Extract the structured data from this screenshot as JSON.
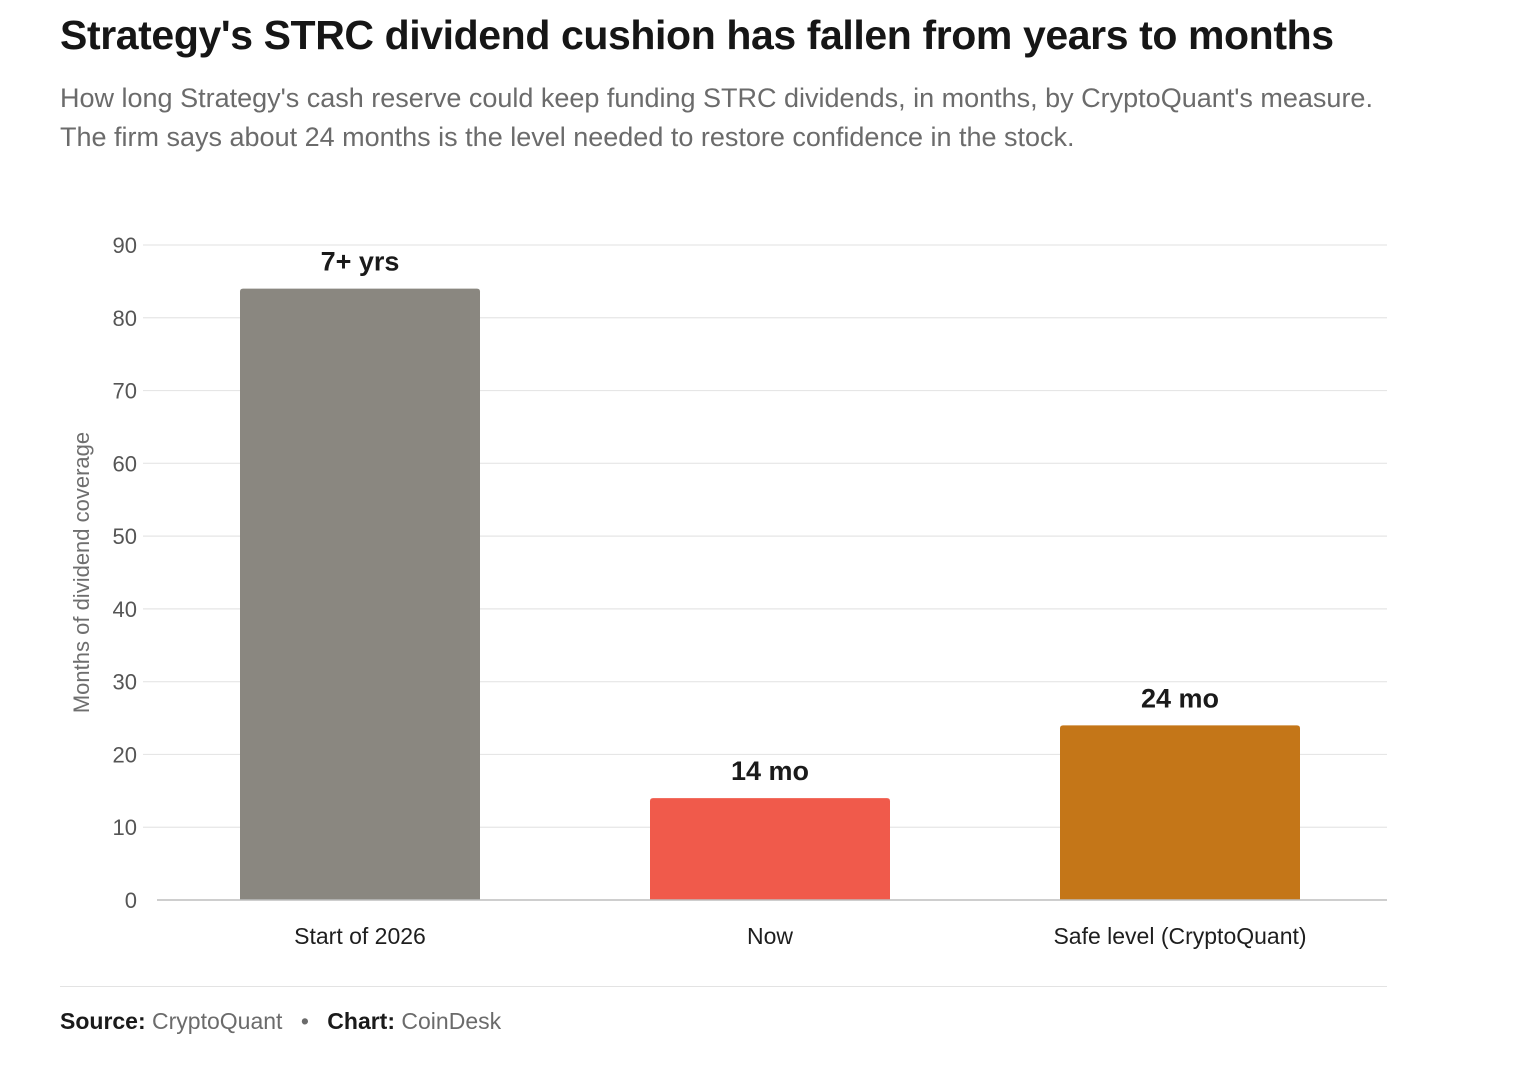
{
  "title": "Strategy's STRC dividend cushion has fallen from years to months",
  "subtitle": "How long Strategy's cash reserve could keep funding STRC dividends, in months, by CryptoQuant's measure. The firm says about 24 months is the level needed to restore confidence in the stock.",
  "chart_data": {
    "type": "bar",
    "categories": [
      "Start of 2026",
      "Now",
      "Safe level (CryptoQuant)"
    ],
    "values": [
      84,
      14,
      24
    ],
    "data_labels": [
      "7+ yrs",
      "14 mo",
      "24 mo"
    ],
    "colors": [
      "#8a8780",
      "#f05a4b",
      "#c47618"
    ],
    "xlabel": "",
    "ylabel": "Months of dividend coverage",
    "ylim": [
      0,
      90
    ],
    "yticks": [
      0,
      10,
      20,
      30,
      40,
      50,
      60,
      70,
      80,
      90
    ],
    "grid": true,
    "legend": "none"
  },
  "footer": {
    "source_label": "Source:",
    "source_value": "CryptoQuant",
    "separator": "•",
    "chart_label": "Chart:",
    "chart_value": "CoinDesk"
  }
}
